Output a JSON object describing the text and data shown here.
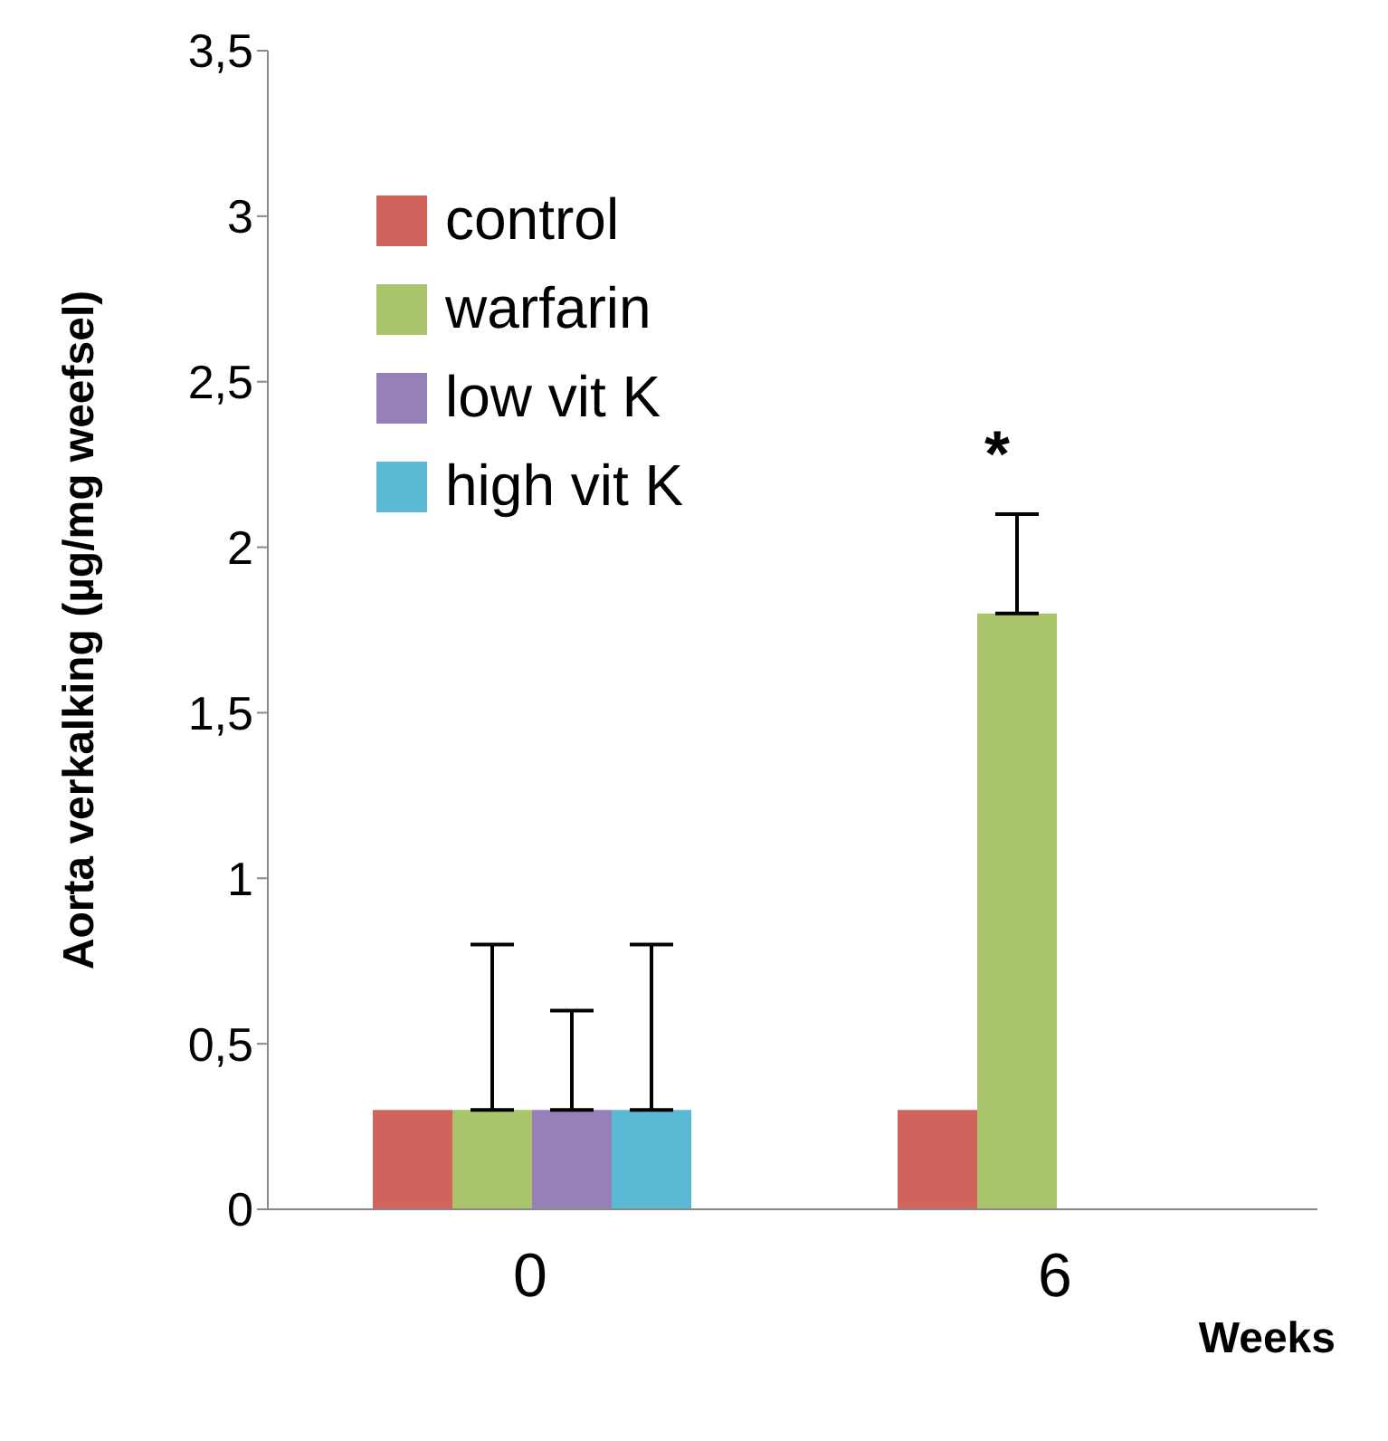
{
  "chart_data": {
    "type": "bar",
    "xlabel": "Weeks",
    "ylabel": "Aorta verkalking (µg/mg weefsel)",
    "categories": [
      "0",
      "6"
    ],
    "series": [
      {
        "name": "control",
        "color": "#d0635c",
        "values": [
          0.3,
          0.3
        ]
      },
      {
        "name": "warfarin",
        "color": "#a9c46a",
        "values": [
          0.3,
          1.8
        ],
        "errors": [
          [
            0.3,
            0.8
          ],
          [
            1.8,
            2.1
          ]
        ]
      },
      {
        "name": "low vit K",
        "color": "#9580b7",
        "values": [
          0.3,
          null
        ],
        "errors": [
          [
            0.3,
            0.6
          ],
          null
        ]
      },
      {
        "name": "high vit K",
        "color": "#5bb9d3",
        "values": [
          0.3,
          null
        ],
        "errors": [
          [
            0.3,
            0.8
          ],
          null
        ]
      }
    ],
    "ylim": [
      0,
      3.5
    ],
    "yticks": [
      0,
      {
        "value": 0.5,
        "label": "0,5"
      },
      1,
      {
        "value": 1.5,
        "label": "1,5"
      },
      2,
      {
        "value": 2.5,
        "label": "2,5"
      },
      3,
      {
        "value": 3.5,
        "label": "3,5"
      }
    ],
    "annotations": [
      "*"
    ],
    "legend": "top left",
    "grid": false
  }
}
